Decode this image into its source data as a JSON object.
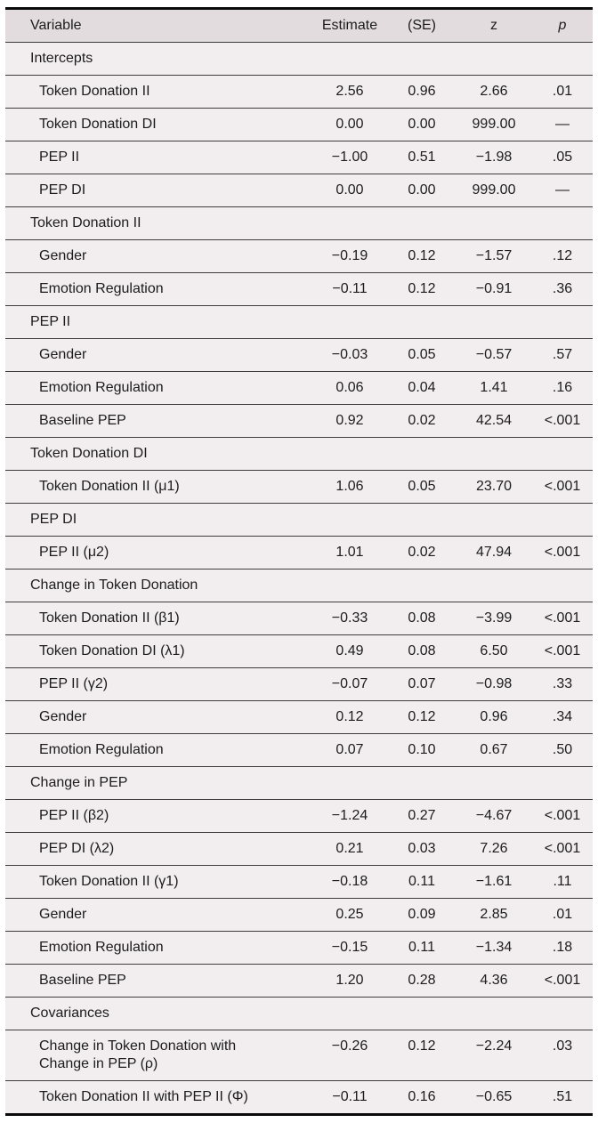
{
  "table": {
    "columns": [
      "Variable",
      "Estimate",
      "(SE)",
      "z",
      "p"
    ],
    "sections": [
      {
        "header": "Intercepts",
        "rows": [
          {
            "label": "Token Donation II",
            "estimate": "2.56",
            "se": "0.96",
            "z": "2.66",
            "p": ".01"
          },
          {
            "label": "Token Donation DI",
            "estimate": "0.00",
            "se": "0.00",
            "z": "999.00",
            "p": "—"
          },
          {
            "label": "PEP II",
            "estimate": "−1.00",
            "se": "0.51",
            "z": "−1.98",
            "p": ".05"
          },
          {
            "label": "PEP DI",
            "estimate": "0.00",
            "se": "0.00",
            "z": "999.00",
            "p": "—"
          }
        ]
      },
      {
        "header": "Token Donation II",
        "rows": [
          {
            "label": "Gender",
            "estimate": "−0.19",
            "se": "0.12",
            "z": "−1.57",
            "p": ".12"
          },
          {
            "label": "Emotion Regulation",
            "estimate": "−0.11",
            "se": "0.12",
            "z": "−0.91",
            "p": ".36"
          }
        ]
      },
      {
        "header": "PEP II",
        "rows": [
          {
            "label": "Gender",
            "estimate": "−0.03",
            "se": "0.05",
            "z": "−0.57",
            "p": ".57"
          },
          {
            "label": "Emotion Regulation",
            "estimate": "0.06",
            "se": "0.04",
            "z": "1.41",
            "p": ".16"
          },
          {
            "label": "Baseline PEP",
            "estimate": "0.92",
            "se": "0.02",
            "z": "42.54",
            "p": "<.001"
          }
        ]
      },
      {
        "header": "Token Donation DI",
        "rows": [
          {
            "label": "Token Donation II (μ1)",
            "estimate": "1.06",
            "se": "0.05",
            "z": "23.70",
            "p": "<.001"
          }
        ]
      },
      {
        "header": "PEP DI",
        "rows": [
          {
            "label": "PEP II (μ2)",
            "estimate": "1.01",
            "se": "0.02",
            "z": "47.94",
            "p": "<.001"
          }
        ]
      },
      {
        "header": "Change in Token Donation",
        "rows": [
          {
            "label": "Token Donation II (β1)",
            "estimate": "−0.33",
            "se": "0.08",
            "z": "−3.99",
            "p": "<.001"
          },
          {
            "label": "Token Donation DI (λ1)",
            "estimate": "0.49",
            "se": "0.08",
            "z": "6.50",
            "p": "<.001"
          },
          {
            "label": "PEP II (γ2)",
            "estimate": "−0.07",
            "se": "0.07",
            "z": "−0.98",
            "p": ".33"
          },
          {
            "label": "Gender",
            "estimate": "0.12",
            "se": "0.12",
            "z": "0.96",
            "p": ".34"
          },
          {
            "label": "Emotion Regulation",
            "estimate": "0.07",
            "se": "0.10",
            "z": "0.67",
            "p": ".50"
          }
        ]
      },
      {
        "header": "Change in PEP",
        "rows": [
          {
            "label": "PEP II (β2)",
            "estimate": "−1.24",
            "se": "0.27",
            "z": "−4.67",
            "p": "<.001"
          },
          {
            "label": "PEP DI (λ2)",
            "estimate": "0.21",
            "se": "0.03",
            "z": "7.26",
            "p": "<.001"
          },
          {
            "label": "Token Donation II (γ1)",
            "estimate": "−0.18",
            "se": "0.11",
            "z": "−1.61",
            "p": ".11"
          },
          {
            "label": "Gender",
            "estimate": "0.25",
            "se": "0.09",
            "z": "2.85",
            "p": ".01"
          },
          {
            "label": "Emotion Regulation",
            "estimate": "−0.15",
            "se": "0.11",
            "z": "−1.34",
            "p": ".18"
          },
          {
            "label": "Baseline PEP",
            "estimate": "1.20",
            "se": "0.28",
            "z": "4.36",
            "p": "<.001"
          }
        ]
      },
      {
        "header": "Covariances",
        "rows": [
          {
            "label": "Change in Token Donation with Change in PEP (ρ)",
            "estimate": "−0.26",
            "se": "0.12",
            "z": "−2.24",
            "p": ".03"
          },
          {
            "label": "Token Donation II with PEP II (Φ)",
            "estimate": "−0.11",
            "se": "0.16",
            "z": "−0.65",
            "p": ".51"
          }
        ]
      }
    ]
  },
  "colors": {
    "table_background": "#f2edee",
    "header_background": "#e3dcde",
    "rule_thick": "#0a0a0a",
    "rule_thin": "#3c3c3c",
    "text": "#1c1c1c"
  }
}
